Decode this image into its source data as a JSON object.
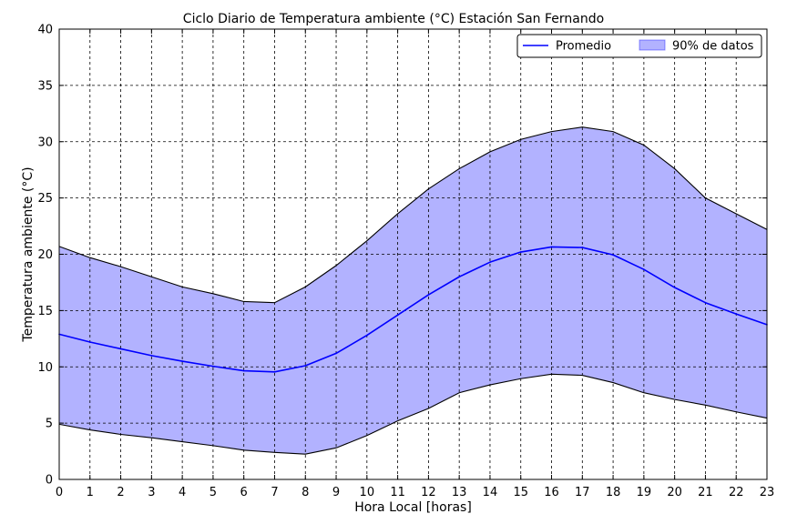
{
  "chart_data": {
    "type": "area",
    "title": "Ciclo Diario de Temperatura ambiente (°C) Estación San Fernando",
    "xlabel": "Hora Local [horas]",
    "ylabel": "Temperatura ambiente (°C)",
    "xlim": [
      0,
      23
    ],
    "ylim": [
      0,
      40
    ],
    "x": [
      0,
      1,
      2,
      3,
      4,
      5,
      6,
      7,
      8,
      9,
      10,
      11,
      12,
      13,
      14,
      15,
      16,
      17,
      18,
      19,
      20,
      21,
      22,
      23
    ],
    "xticks": [
      "0",
      "1",
      "2",
      "3",
      "4",
      "5",
      "6",
      "7",
      "8",
      "9",
      "10",
      "11",
      "12",
      "13",
      "14",
      "15",
      "16",
      "17",
      "18",
      "19",
      "20",
      "21",
      "22",
      "23"
    ],
    "yticks": [
      "0",
      "5",
      "10",
      "15",
      "20",
      "25",
      "30",
      "35",
      "40"
    ],
    "yticks_values": [
      0,
      5,
      10,
      15,
      20,
      25,
      30,
      35,
      40
    ],
    "grid": true,
    "legend_position": "top-right",
    "series": [
      {
        "name": "Promedio",
        "kind": "line",
        "color": "#0000ff",
        "values": [
          12.9,
          12.2,
          11.6,
          11.0,
          10.5,
          10.05,
          9.65,
          9.55,
          10.1,
          11.2,
          12.8,
          14.6,
          16.4,
          18.0,
          19.3,
          20.2,
          20.65,
          20.6,
          19.95,
          18.65,
          17.05,
          15.7,
          14.7,
          13.75
        ]
      },
      {
        "name": "90% de datos",
        "kind": "band",
        "color": "#0000ff",
        "fill_opacity": 0.3,
        "lower": [
          4.9,
          4.4,
          4.0,
          3.7,
          3.35,
          3.0,
          2.6,
          2.4,
          2.25,
          2.8,
          3.9,
          5.2,
          6.3,
          7.7,
          8.4,
          8.95,
          9.35,
          9.25,
          8.6,
          7.7,
          7.1,
          6.6,
          6.0,
          5.45
        ],
        "upper": [
          20.7,
          19.7,
          18.9,
          18.0,
          17.1,
          16.5,
          15.8,
          15.7,
          17.1,
          19.0,
          21.2,
          23.6,
          25.8,
          27.6,
          29.1,
          30.2,
          30.9,
          31.3,
          30.9,
          29.7,
          27.6,
          25.0,
          23.6,
          22.2
        ]
      }
    ]
  }
}
